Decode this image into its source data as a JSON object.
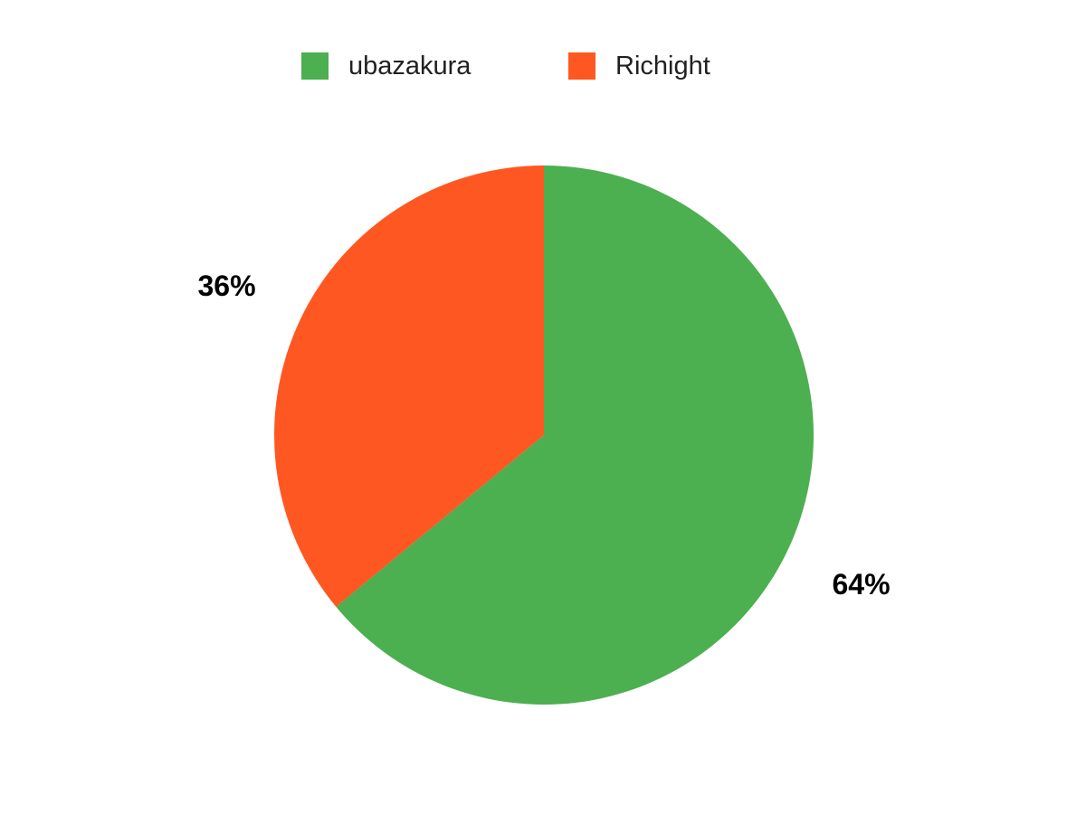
{
  "chart_data": {
    "type": "pie",
    "title": "",
    "legend_position": "top",
    "start_angle_deg": -90,
    "direction": "clockwise",
    "background_color": "#FFFFFF",
    "label_color": "#000000",
    "legend_text_color": "#212121",
    "series": [
      {
        "label": "ubazakura",
        "value": 64,
        "percent_label": "64%",
        "color": "#4CAF50"
      },
      {
        "label": "Richight",
        "value": 36,
        "percent_label": "36%",
        "color": "#FF5722"
      }
    ]
  }
}
